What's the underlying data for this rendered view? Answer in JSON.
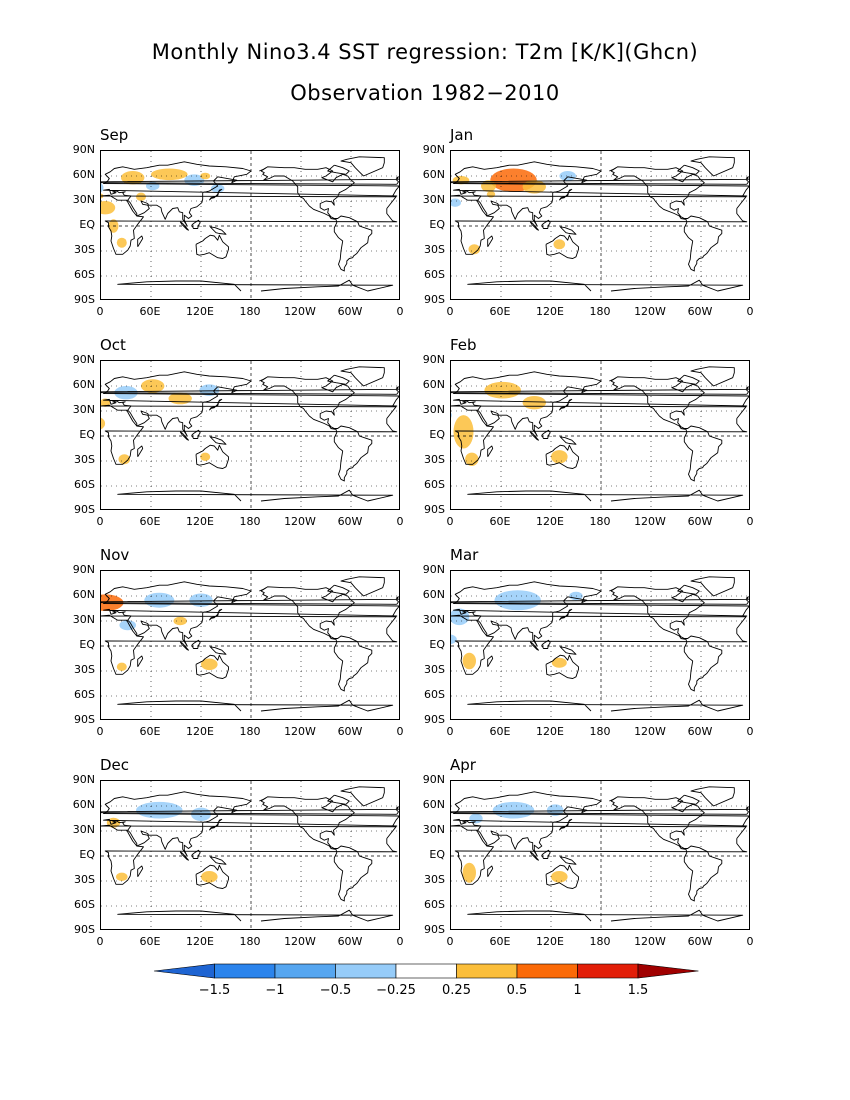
{
  "title": "Monthly Nino3.4 SST regression: T2m [K/K](Ghcn)",
  "subtitle": "Observation 1982−2010",
  "lat_ticks": [
    "90N",
    "60N",
    "30N",
    "EQ",
    "30S",
    "60S",
    "90S"
  ],
  "lon_ticks": [
    "0",
    "60E",
    "120E",
    "180",
    "120W",
    "60W",
    "0"
  ],
  "panels": [
    {
      "month": "Sep"
    },
    {
      "month": "Jan"
    },
    {
      "month": "Oct"
    },
    {
      "month": "Feb"
    },
    {
      "month": "Nov"
    },
    {
      "month": "Mar"
    },
    {
      "month": "Dec"
    },
    {
      "month": "Apr"
    }
  ],
  "colorbar": {
    "labels": [
      "−1.5",
      "−1",
      "−0.5",
      "−0.25",
      "0.25",
      "0.5",
      "1",
      "1.5"
    ],
    "colors": [
      "#1e64d2",
      "#2b84ec",
      "#56a6f0",
      "#96ccf9",
      "#ffffff",
      "#fbbe3a",
      "#fb6a08",
      "#e21e08",
      "#a00000"
    ]
  }
}
